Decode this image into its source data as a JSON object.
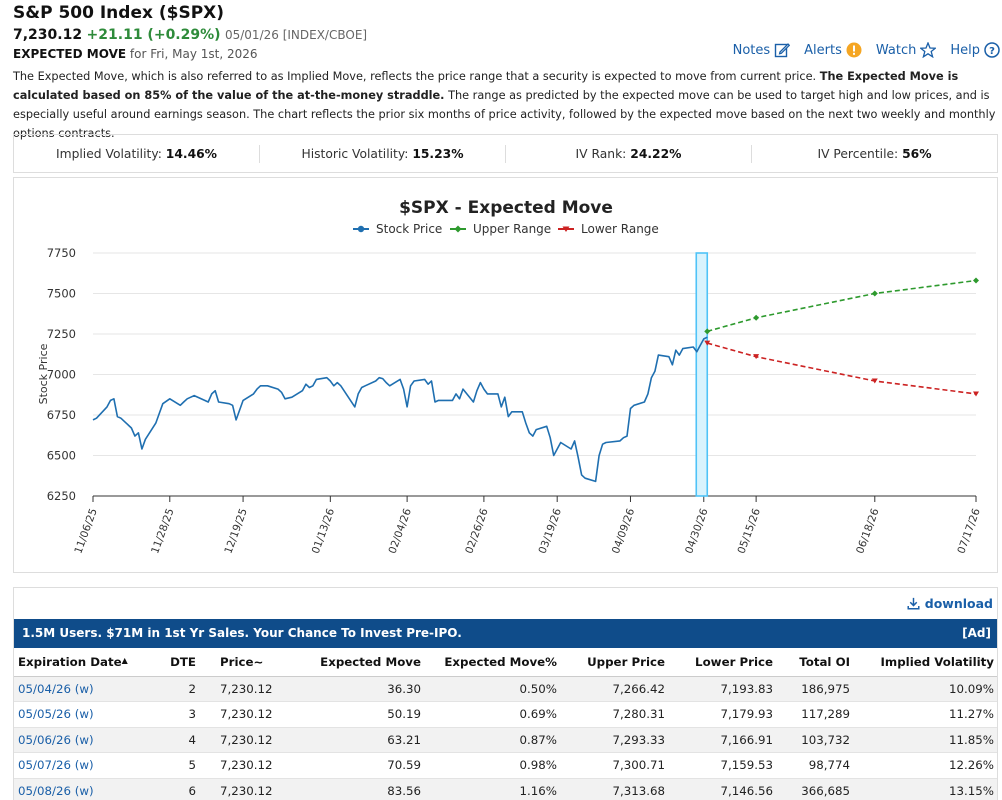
{
  "header": {
    "title": "S&P 500 Index ($SPX)",
    "price": "7,230.12",
    "change": "+21.11 (+0.29%)",
    "meta": "05/01/26 [INDEX/CBOE]",
    "em_label": "EXPECTED MOVE",
    "em_date": "for Fri, May 1st, 2026"
  },
  "actions": {
    "notes": "Notes",
    "alerts": "Alerts",
    "watch": "Watch",
    "help": "Help"
  },
  "description": {
    "part1": "The Expected Move, which is also referred to as Implied Move, reflects the price range that a security is expected to move from current price. ",
    "bold": "The Expected Move is calculated based on 85% of the value of the at-the-money straddle.",
    "part2": " The range as predicted by the expected move can be used to target high and low prices, and is especially useful around earnings season. The chart reflects the prior six months of price activity, followed by the expected move based on the next two weekly and monthly options contracts."
  },
  "stats": [
    {
      "label": "Implied Volatility:",
      "value": "14.46%"
    },
    {
      "label": "Historic Volatility:",
      "value": "15.23%"
    },
    {
      "label": "IV Rank:",
      "value": "24.22%"
    },
    {
      "label": "IV Percentile:",
      "value": "56%"
    }
  ],
  "chart_data": {
    "type": "line",
    "title": "$SPX - Expected Move",
    "ylabel": "Stock Price",
    "ylim": [
      6250,
      7750
    ],
    "yticks": [
      7750,
      7500,
      7250,
      7000,
      6750,
      6500,
      6250
    ],
    "xtick_labels": [
      "11/06/25",
      "11/28/25",
      "12/19/25",
      "01/13/26",
      "02/04/26",
      "02/26/26",
      "03/19/26",
      "04/09/26",
      "04/30/26",
      "05/15/26",
      "06/18/26",
      "07/17/26"
    ],
    "legend": [
      "Stock Price",
      "Upper Range",
      "Lower Range"
    ],
    "colors": {
      "stock": "#1f6fb0",
      "upper": "#2e9a2e",
      "lower": "#cc2222",
      "highlight": "#4fc3f7"
    },
    "series": [
      {
        "name": "Stock Price",
        "points": [
          [
            "2025-11-06",
            6720
          ],
          [
            "2025-11-07",
            6730
          ],
          [
            "2025-11-10",
            6800
          ],
          [
            "2025-11-11",
            6840
          ],
          [
            "2025-11-12",
            6850
          ],
          [
            "2025-11-13",
            6740
          ],
          [
            "2025-11-14",
            6730
          ],
          [
            "2025-11-17",
            6670
          ],
          [
            "2025-11-18",
            6620
          ],
          [
            "2025-11-19",
            6640
          ],
          [
            "2025-11-20",
            6540
          ],
          [
            "2025-11-21",
            6600
          ],
          [
            "2025-11-24",
            6700
          ],
          [
            "2025-11-25",
            6760
          ],
          [
            "2025-11-26",
            6820
          ],
          [
            "2025-11-28",
            6850
          ],
          [
            "2025-12-01",
            6810
          ],
          [
            "2025-12-02",
            6830
          ],
          [
            "2025-12-03",
            6850
          ],
          [
            "2025-12-04",
            6860
          ],
          [
            "2025-12-05",
            6870
          ],
          [
            "2025-12-08",
            6840
          ],
          [
            "2025-12-09",
            6830
          ],
          [
            "2025-12-10",
            6880
          ],
          [
            "2025-12-11",
            6900
          ],
          [
            "2025-12-12",
            6830
          ],
          [
            "2025-12-15",
            6820
          ],
          [
            "2025-12-16",
            6810
          ],
          [
            "2025-12-17",
            6720
          ],
          [
            "2025-12-18",
            6780
          ],
          [
            "2025-12-19",
            6840
          ],
          [
            "2025-12-22",
            6880
          ],
          [
            "2025-12-23",
            6910
          ],
          [
            "2025-12-24",
            6930
          ],
          [
            "2025-12-26",
            6930
          ],
          [
            "2025-12-29",
            6910
          ],
          [
            "2025-12-30",
            6890
          ],
          [
            "2025-12-31",
            6850
          ],
          [
            "2026-01-02",
            6860
          ],
          [
            "2026-01-05",
            6900
          ],
          [
            "2026-01-06",
            6940
          ],
          [
            "2026-01-07",
            6920
          ],
          [
            "2026-01-08",
            6930
          ],
          [
            "2026-01-09",
            6970
          ],
          [
            "2026-01-12",
            6980
          ],
          [
            "2026-01-13",
            6960
          ],
          [
            "2026-01-14",
            6930
          ],
          [
            "2026-01-15",
            6950
          ],
          [
            "2026-01-16",
            6930
          ],
          [
            "2026-01-20",
            6800
          ],
          [
            "2026-01-21",
            6880
          ],
          [
            "2026-01-22",
            6920
          ],
          [
            "2026-01-23",
            6930
          ],
          [
            "2026-01-26",
            6960
          ],
          [
            "2026-01-27",
            6980
          ],
          [
            "2026-01-28",
            6975
          ],
          [
            "2026-01-29",
            6950
          ],
          [
            "2026-01-30",
            6930
          ],
          [
            "2026-02-02",
            6970
          ],
          [
            "2026-02-03",
            6910
          ],
          [
            "2026-02-04",
            6800
          ],
          [
            "2026-02-05",
            6930
          ],
          [
            "2026-02-06",
            6960
          ],
          [
            "2026-02-09",
            6970
          ],
          [
            "2026-02-10",
            6940
          ],
          [
            "2026-02-11",
            6960
          ],
          [
            "2026-02-12",
            6830
          ],
          [
            "2026-02-13",
            6840
          ],
          [
            "2026-02-17",
            6840
          ],
          [
            "2026-02-18",
            6880
          ],
          [
            "2026-02-19",
            6850
          ],
          [
            "2026-02-20",
            6910
          ],
          [
            "2026-02-23",
            6830
          ],
          [
            "2026-02-24",
            6900
          ],
          [
            "2026-02-25",
            6950
          ],
          [
            "2026-02-26",
            6910
          ],
          [
            "2026-02-27",
            6880
          ],
          [
            "2026-03-02",
            6880
          ],
          [
            "2026-03-03",
            6800
          ],
          [
            "2026-03-04",
            6860
          ],
          [
            "2026-03-05",
            6740
          ],
          [
            "2026-03-06",
            6770
          ],
          [
            "2026-03-09",
            6770
          ],
          [
            "2026-03-10",
            6700
          ],
          [
            "2026-03-11",
            6640
          ],
          [
            "2026-03-12",
            6620
          ],
          [
            "2026-03-13",
            6660
          ],
          [
            "2026-03-16",
            6680
          ],
          [
            "2026-03-17",
            6610
          ],
          [
            "2026-03-18",
            6500
          ],
          [
            "2026-03-19",
            6540
          ],
          [
            "2026-03-20",
            6580
          ],
          [
            "2026-03-23",
            6540
          ],
          [
            "2026-03-24",
            6590
          ],
          [
            "2026-03-25",
            6490
          ],
          [
            "2026-03-26",
            6380
          ],
          [
            "2026-03-27",
            6360
          ],
          [
            "2026-03-30",
            6340
          ],
          [
            "2026-03-31",
            6500
          ],
          [
            "2026-04-01",
            6570
          ],
          [
            "2026-04-02",
            6580
          ],
          [
            "2026-04-06",
            6590
          ],
          [
            "2026-04-07",
            6610
          ],
          [
            "2026-04-08",
            6620
          ],
          [
            "2026-04-09",
            6790
          ],
          [
            "2026-04-10",
            6810
          ],
          [
            "2026-04-13",
            6830
          ],
          [
            "2026-04-14",
            6880
          ],
          [
            "2026-04-15",
            6980
          ],
          [
            "2026-04-16",
            7020
          ],
          [
            "2026-04-17",
            7120
          ],
          [
            "2026-04-20",
            7110
          ],
          [
            "2026-04-21",
            7060
          ],
          [
            "2026-04-22",
            7150
          ],
          [
            "2026-04-23",
            7120
          ],
          [
            "2026-04-24",
            7160
          ],
          [
            "2026-04-27",
            7170
          ],
          [
            "2026-04-28",
            7140
          ],
          [
            "2026-04-29",
            7180
          ],
          [
            "2026-04-30",
            7220
          ],
          [
            "2026-05-01",
            7230
          ]
        ]
      },
      {
        "name": "Upper Range",
        "points": [
          [
            "2026-05-01",
            7266.42
          ],
          [
            "2026-05-15",
            7350
          ],
          [
            "2026-06-18",
            7500
          ],
          [
            "2026-07-17",
            7580
          ]
        ]
      },
      {
        "name": "Lower Range",
        "points": [
          [
            "2026-05-01",
            7193.83
          ],
          [
            "2026-05-15",
            7110
          ],
          [
            "2026-06-18",
            6960
          ],
          [
            "2026-07-17",
            6880
          ]
        ]
      }
    ]
  },
  "table": {
    "download_label": "download",
    "ad_text": "1.5M Users. $71M in 1st Yr Sales. Your Chance To Invest Pre-IPO.",
    "ad_tag": "[Ad]",
    "headers": [
      "Expiration Date",
      "DTE",
      "Price~",
      "Expected Move",
      "Expected Move%",
      "Upper Price",
      "Lower Price",
      "Total OI",
      "Implied Volatility"
    ],
    "rows": [
      [
        "05/04/26 (w)",
        "2",
        "7,230.12",
        "36.30",
        "0.50%",
        "7,266.42",
        "7,193.83",
        "186,975",
        "10.09%"
      ],
      [
        "05/05/26 (w)",
        "3",
        "7,230.12",
        "50.19",
        "0.69%",
        "7,280.31",
        "7,179.93",
        "117,289",
        "11.27%"
      ],
      [
        "05/06/26 (w)",
        "4",
        "7,230.12",
        "63.21",
        "0.87%",
        "7,293.33",
        "7,166.91",
        "103,732",
        "11.85%"
      ],
      [
        "05/07/26 (w)",
        "5",
        "7,230.12",
        "70.59",
        "0.98%",
        "7,300.71",
        "7,159.53",
        "98,774",
        "12.26%"
      ],
      [
        "05/08/26 (w)",
        "6",
        "7,230.12",
        "83.56",
        "1.16%",
        "7,313.68",
        "7,146.56",
        "366,685",
        "13.15%"
      ]
    ]
  }
}
